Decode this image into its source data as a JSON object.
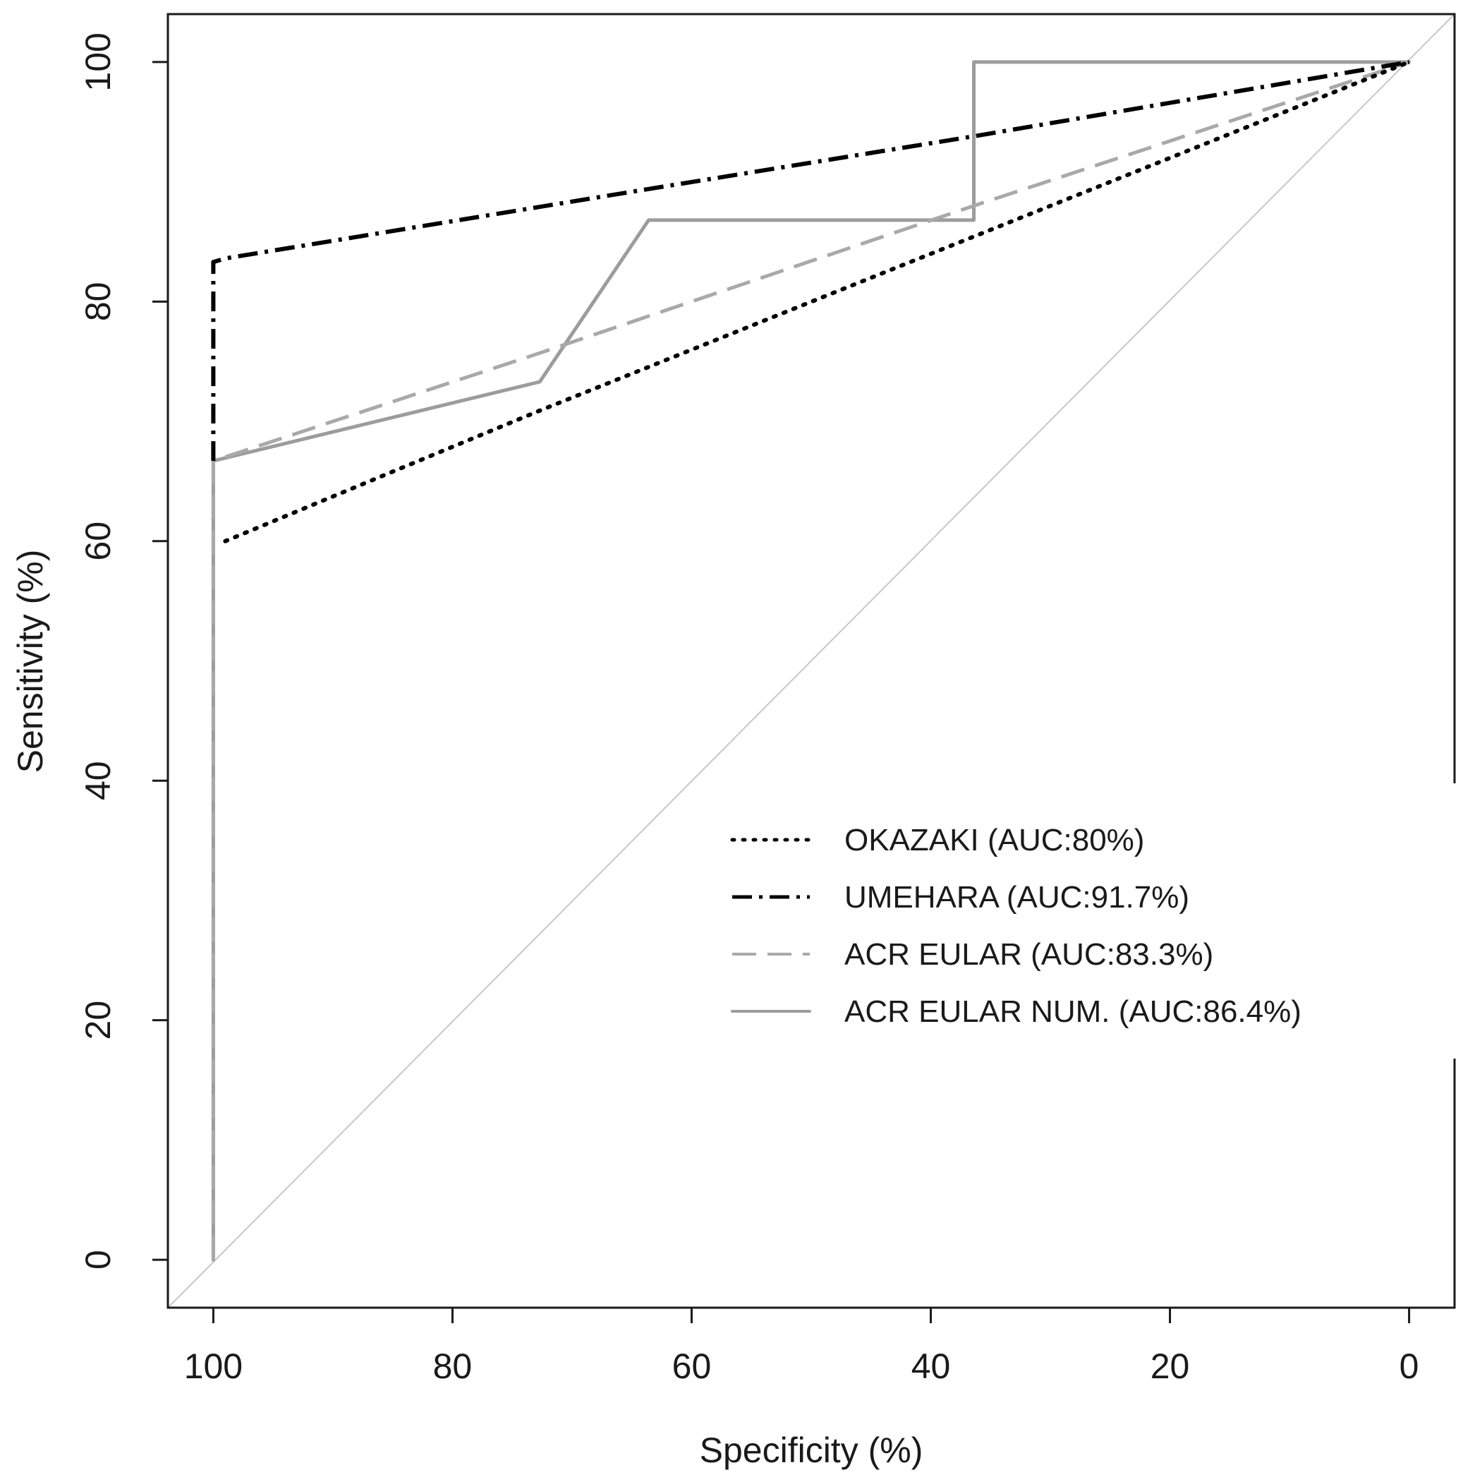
{
  "chart_data": {
    "type": "line",
    "title": "",
    "xlabel": "Specificity (%)",
    "ylabel": "Sensitivity (%)",
    "xlim": [
      103.8,
      -3.8
    ],
    "ylim": [
      -4,
      104
    ],
    "x_reversed": true,
    "grid": false,
    "xticks": [
      100,
      80,
      60,
      40,
      20,
      0
    ],
    "yticks": [
      0,
      20,
      40,
      60,
      80,
      100
    ],
    "xtick_labels": [
      "100",
      "80",
      "60",
      "40",
      "20",
      "0"
    ],
    "ytick_labels": [
      "0",
      "20",
      "40",
      "60",
      "80",
      "100"
    ],
    "legend_position": "center-right",
    "reference_line": {
      "name": "chance diagonal",
      "x": [
        100,
        0
      ],
      "y": [
        0,
        100
      ],
      "color": "#c8c8c8"
    },
    "series": [
      {
        "name": "OKAZAKI (AUC:80%)",
        "style": "dotted",
        "color": "#000000",
        "x": [
          99,
          72.7,
          0
        ],
        "y": [
          60,
          70.9,
          100
        ]
      },
      {
        "name": "UMEHARA (AUC:91.7%)",
        "style": "dashdot",
        "color": "#000000",
        "x": [
          100,
          100,
          99,
          63.6,
          36.4,
          0
        ],
        "y": [
          66.7,
          83.3,
          83.6,
          89.4,
          93.8,
          100
        ]
      },
      {
        "name": "ACR EULAR (AUC:83.3%)",
        "style": "dashed",
        "color": "#a9a9a9",
        "x": [
          100,
          100,
          72.7,
          36.4,
          0
        ],
        "y": [
          0,
          66.7,
          75.7,
          88,
          100
        ]
      },
      {
        "name": "ACR EULAR NUM. (AUC:86.4%)",
        "style": "solid",
        "color": "#9c9c9c",
        "x": [
          100,
          100,
          72.7,
          63.6,
          36.4,
          36.4,
          0
        ],
        "y": [
          0,
          66.7,
          73.3,
          86.8,
          86.8,
          100,
          100
        ]
      }
    ]
  }
}
